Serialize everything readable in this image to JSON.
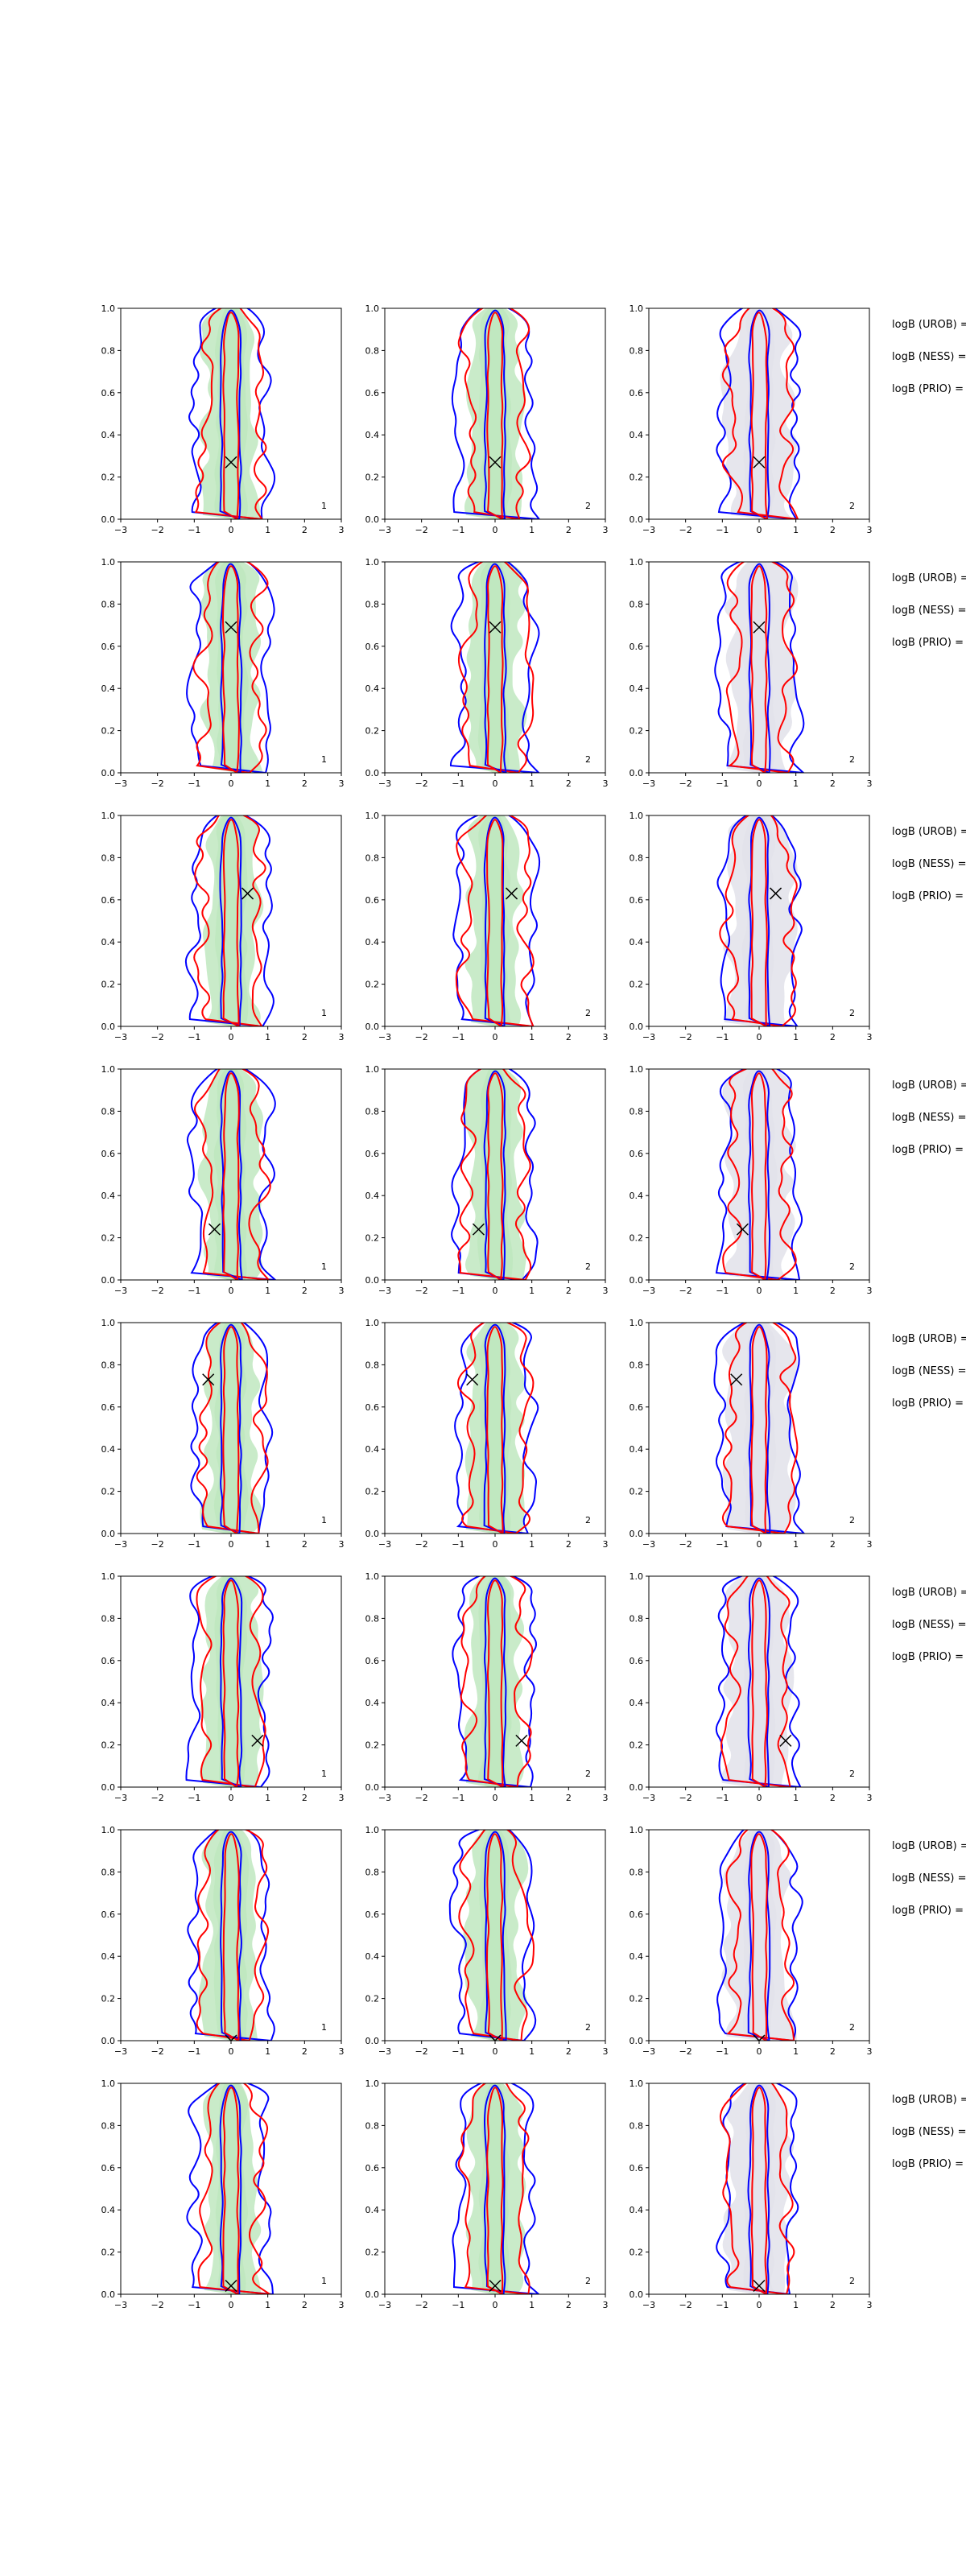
{
  "chart_data": {
    "type": "contour-grid",
    "rows": 8,
    "cols": 3,
    "xlim": [
      -3,
      3
    ],
    "ylim": [
      0,
      1
    ],
    "xticks": [
      -3,
      -2,
      -1,
      0,
      1,
      2,
      3
    ],
    "xtick_labels": [
      "−3",
      "−2",
      "−1",
      "0",
      "1",
      "2",
      "3"
    ],
    "yticks": [
      0.0,
      0.2,
      0.4,
      0.6,
      0.8,
      1.0
    ],
    "ytick_labels": [
      "0.0",
      "0.2",
      "0.4",
      "0.6",
      "0.8",
      "1.0"
    ],
    "column_fills": [
      "green",
      "green",
      "grey"
    ],
    "colors": {
      "blue_contour": "#0000ff",
      "red_contour": "#ff0000",
      "green_fill": "#bfe8bf",
      "grey_fill": "#e2e2ea",
      "marker": "#000000"
    },
    "side_labels": [
      "logB (UROB) =",
      "logB (NESS) =",
      "logB (PRIO) ="
    ],
    "panels": [
      {
        "row": 0,
        "markers": [
          {
            "x": 0.0,
            "y": 0.27
          },
          {
            "x": 0.0,
            "y": 0.27
          },
          {
            "x": 0.0,
            "y": 0.27
          }
        ],
        "labels": [
          "1",
          "2",
          "2"
        ]
      },
      {
        "row": 1,
        "markers": [
          {
            "x": 0.0,
            "y": 0.69
          },
          {
            "x": 0.0,
            "y": 0.69
          },
          {
            "x": 0.0,
            "y": 0.69
          }
        ],
        "labels": [
          "1",
          "2",
          "2"
        ]
      },
      {
        "row": 2,
        "markers": [
          {
            "x": 0.45,
            "y": 0.63
          },
          {
            "x": 0.45,
            "y": 0.63
          },
          {
            "x": 0.45,
            "y": 0.63
          }
        ],
        "labels": [
          "1",
          "2",
          "2"
        ]
      },
      {
        "row": 3,
        "markers": [
          {
            "x": -0.45,
            "y": 0.24
          },
          {
            "x": -0.45,
            "y": 0.24
          },
          {
            "x": -0.45,
            "y": 0.24
          }
        ],
        "labels": [
          "1",
          "2",
          "2"
        ]
      },
      {
        "row": 4,
        "markers": [
          {
            "x": -0.62,
            "y": 0.73
          },
          {
            "x": -0.62,
            "y": 0.73
          },
          {
            "x": -0.62,
            "y": 0.73
          }
        ],
        "labels": [
          "1",
          "2",
          "2"
        ]
      },
      {
        "row": 5,
        "markers": [
          {
            "x": 0.72,
            "y": 0.22
          },
          {
            "x": 0.72,
            "y": 0.22
          },
          {
            "x": 0.72,
            "y": 0.22
          }
        ],
        "labels": [
          "1",
          "2",
          "2"
        ]
      },
      {
        "row": 6,
        "markers": [
          {
            "x": 0.0,
            "y": 0.0
          },
          {
            "x": 0.0,
            "y": 0.0
          },
          {
            "x": 0.0,
            "y": 0.0
          }
        ],
        "labels": [
          "1",
          "2",
          "2"
        ]
      },
      {
        "row": 7,
        "markers": [
          {
            "x": 0.0,
            "y": 0.04
          },
          {
            "x": 0.0,
            "y": 0.04
          },
          {
            "x": 0.0,
            "y": 0.04
          }
        ],
        "labels": [
          "1",
          "2",
          "2"
        ]
      }
    ]
  }
}
